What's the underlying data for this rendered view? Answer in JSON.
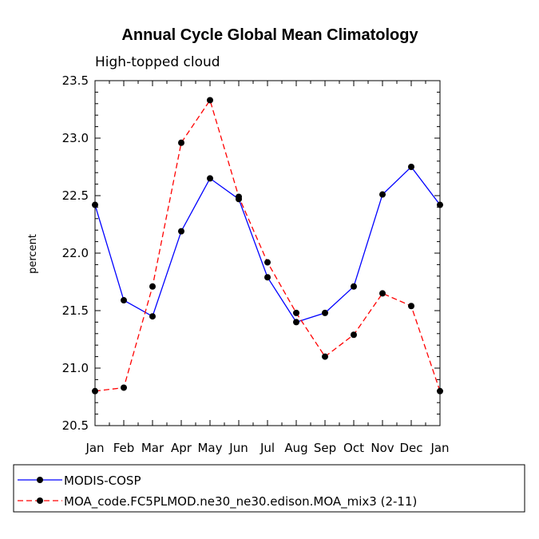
{
  "chart_data": {
    "type": "line",
    "title": "Annual Cycle Global Mean Climatology",
    "subtitle": "High-topped cloud",
    "ylabel": "percent",
    "xlabel": "",
    "categories": [
      "Jan",
      "Feb",
      "Mar",
      "Apr",
      "May",
      "Jun",
      "Jul",
      "Aug",
      "Sep",
      "Oct",
      "Nov",
      "Dec",
      "Jan"
    ],
    "ylim": [
      20.5,
      23.5
    ],
    "yticks": [
      "20.5",
      "21.0",
      "21.5",
      "22.0",
      "22.5",
      "23.0",
      "23.5"
    ],
    "series": [
      {
        "name": "MODIS-COSP",
        "color": "#0000ff",
        "dash": "solid",
        "values": [
          22.42,
          21.59,
          21.45,
          22.19,
          22.65,
          22.47,
          21.79,
          21.4,
          21.48,
          21.71,
          22.51,
          22.75,
          22.42
        ]
      },
      {
        "name": "MOA_code.FC5PLMOD.ne30_ne30.edison.MOA_mix3 (2-11)",
        "color": "#ff0000",
        "dash": "dashed",
        "values": [
          20.8,
          20.83,
          21.71,
          22.96,
          23.33,
          22.49,
          21.92,
          21.48,
          21.1,
          21.29,
          21.65,
          21.54,
          20.8
        ]
      }
    ],
    "legend_position": "bottom"
  }
}
